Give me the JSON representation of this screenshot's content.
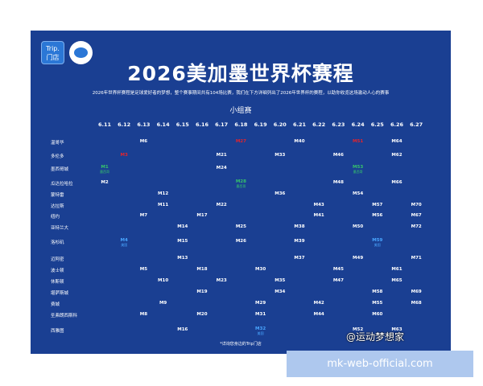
{
  "poster": {
    "logo_text": "Trip.\n门店",
    "title": "2026美加墨世界杯赛程",
    "intro": "2026年世界杯赛程是足球爱好者的梦想，整个赛事期间共有104场比赛，我们在下方详细列出了2026年世界杯的赛程，以助你收览这场激动人心的赛事",
    "stage": "小组赛",
    "footnote": "*详询您身边的Trip门店"
  },
  "dates": [
    "6.11",
    "6.12",
    "6.13",
    "6.14",
    "6.15",
    "6.16",
    "6.17",
    "6.18",
    "6.19",
    "6.20",
    "6.21",
    "6.22",
    "6.23",
    "6.24",
    "6.25",
    "6.26",
    "6.27"
  ],
  "cities": [
    "温哥华",
    "多伦多",
    "墨西哥城",
    "瓜达拉哈拉",
    "蒙特雷",
    "达拉斯",
    "纽约",
    "亚特兰大",
    "洛杉矶",
    "迈阿密",
    "波士顿",
    "休斯顿",
    "堪萨斯城",
    "费城",
    "圣弗朗西斯科",
    "西雅图"
  ],
  "matches": [
    {
      "label": "M6",
      "city": 0,
      "day": 2,
      "color": "white"
    },
    {
      "label": "M27",
      "city": 0,
      "day": 7,
      "color": "red"
    },
    {
      "label": "M40",
      "city": 0,
      "day": 10,
      "color": "white"
    },
    {
      "label": "M51",
      "city": 0,
      "day": 13,
      "color": "red"
    },
    {
      "label": "M64",
      "city": 0,
      "day": 15,
      "color": "white"
    },
    {
      "label": "M3",
      "city": 1,
      "day": 1,
      "color": "red"
    },
    {
      "label": "M21",
      "city": 1,
      "day": 6,
      "color": "white"
    },
    {
      "label": "M33",
      "city": 1,
      "day": 9,
      "color": "white"
    },
    {
      "label": "M46",
      "city": 1,
      "day": 12,
      "color": "white"
    },
    {
      "label": "M62",
      "city": 1,
      "day": 15,
      "color": "white"
    },
    {
      "label": "M1",
      "sub": "墨西哥",
      "city": 2,
      "day": 0,
      "color": "green"
    },
    {
      "label": "M24",
      "city": 2,
      "day": 6,
      "color": "white"
    },
    {
      "label": "M53",
      "sub": "墨西哥",
      "city": 2,
      "day": 13,
      "color": "green"
    },
    {
      "label": "M2",
      "city": 3,
      "day": 0,
      "color": "white"
    },
    {
      "label": "M28",
      "sub": "墨西哥",
      "city": 3,
      "day": 7,
      "color": "green"
    },
    {
      "label": "M48",
      "city": 3,
      "day": 12,
      "color": "white"
    },
    {
      "label": "M66",
      "city": 3,
      "day": 15,
      "color": "white"
    },
    {
      "label": "M12",
      "city": 4,
      "day": 3,
      "color": "white"
    },
    {
      "label": "M36",
      "city": 4,
      "day": 9,
      "color": "white"
    },
    {
      "label": "M54",
      "city": 4,
      "day": 13,
      "color": "white"
    },
    {
      "label": "M11",
      "city": 5,
      "day": 3,
      "color": "white"
    },
    {
      "label": "M22",
      "city": 5,
      "day": 6,
      "color": "white"
    },
    {
      "label": "M43",
      "city": 5,
      "day": 11,
      "color": "white"
    },
    {
      "label": "M57",
      "city": 5,
      "day": 14,
      "color": "white"
    },
    {
      "label": "M70",
      "city": 5,
      "day": 16,
      "color": "white"
    },
    {
      "label": "M7",
      "city": 6,
      "day": 2,
      "color": "white"
    },
    {
      "label": "M17",
      "city": 6,
      "day": 5,
      "color": "white"
    },
    {
      "label": "M41",
      "city": 6,
      "day": 11,
      "color": "white"
    },
    {
      "label": "M56",
      "city": 6,
      "day": 14,
      "color": "white"
    },
    {
      "label": "M67",
      "city": 6,
      "day": 16,
      "color": "white"
    },
    {
      "label": "M14",
      "city": 7,
      "day": 4,
      "color": "white"
    },
    {
      "label": "M25",
      "city": 7,
      "day": 7,
      "color": "white"
    },
    {
      "label": "M38",
      "city": 7,
      "day": 10,
      "color": "white"
    },
    {
      "label": "M50",
      "city": 7,
      "day": 13,
      "color": "white"
    },
    {
      "label": "M72",
      "city": 7,
      "day": 16,
      "color": "white"
    },
    {
      "label": "M4",
      "sub": "美国",
      "city": 8,
      "day": 1,
      "color": "blue"
    },
    {
      "label": "M15",
      "city": 8,
      "day": 4,
      "color": "white"
    },
    {
      "label": "M26",
      "city": 8,
      "day": 7,
      "color": "white"
    },
    {
      "label": "M39",
      "city": 8,
      "day": 10,
      "color": "white"
    },
    {
      "label": "M59",
      "sub": "美国",
      "city": 8,
      "day": 14,
      "color": "blue"
    },
    {
      "label": "M13",
      "city": 9,
      "day": 4,
      "color": "white"
    },
    {
      "label": "M37",
      "city": 9,
      "day": 10,
      "color": "white"
    },
    {
      "label": "M49",
      "city": 9,
      "day": 13,
      "color": "white"
    },
    {
      "label": "M71",
      "city": 9,
      "day": 16,
      "color": "white"
    },
    {
      "label": "M5",
      "city": 10,
      "day": 2,
      "color": "white"
    },
    {
      "label": "M18",
      "city": 10,
      "day": 5,
      "color": "white"
    },
    {
      "label": "M30",
      "city": 10,
      "day": 8,
      "color": "white"
    },
    {
      "label": "M45",
      "city": 10,
      "day": 12,
      "color": "white"
    },
    {
      "label": "M61",
      "city": 10,
      "day": 15,
      "color": "white"
    },
    {
      "label": "M10",
      "city": 11,
      "day": 3,
      "color": "white"
    },
    {
      "label": "M23",
      "city": 11,
      "day": 6,
      "color": "white"
    },
    {
      "label": "M35",
      "city": 11,
      "day": 9,
      "color": "white"
    },
    {
      "label": "M47",
      "city": 11,
      "day": 12,
      "color": "white"
    },
    {
      "label": "M65",
      "city": 11,
      "day": 15,
      "color": "white"
    },
    {
      "label": "M19",
      "city": 12,
      "day": 5,
      "color": "white"
    },
    {
      "label": "M34",
      "city": 12,
      "day": 9,
      "color": "white"
    },
    {
      "label": "M58",
      "city": 12,
      "day": 14,
      "color": "white"
    },
    {
      "label": "M69",
      "city": 12,
      "day": 16,
      "color": "white"
    },
    {
      "label": "M9",
      "city": 13,
      "day": 3,
      "color": "white"
    },
    {
      "label": "M29",
      "city": 13,
      "day": 8,
      "color": "white"
    },
    {
      "label": "M42",
      "city": 13,
      "day": 11,
      "color": "white"
    },
    {
      "label": "M55",
      "city": 13,
      "day": 14,
      "color": "white"
    },
    {
      "label": "M68",
      "city": 13,
      "day": 16,
      "color": "white"
    },
    {
      "label": "M8",
      "city": 14,
      "day": 2,
      "color": "white"
    },
    {
      "label": "M20",
      "city": 14,
      "day": 5,
      "color": "white"
    },
    {
      "label": "M31",
      "city": 14,
      "day": 8,
      "color": "white"
    },
    {
      "label": "M44",
      "city": 14,
      "day": 11,
      "color": "white"
    },
    {
      "label": "M60",
      "city": 14,
      "day": 14,
      "color": "white"
    },
    {
      "label": "M16",
      "city": 15,
      "day": 4,
      "color": "white"
    },
    {
      "label": "M32",
      "sub": "美国",
      "city": 15,
      "day": 8,
      "color": "blue"
    },
    {
      "label": "M52",
      "city": 15,
      "day": 13,
      "color": "white"
    },
    {
      "label": "M63",
      "city": 15,
      "day": 15,
      "color": "white"
    }
  ],
  "overlay": {
    "weibo": "@运动梦想家",
    "banner": "mk-web-official.com"
  }
}
